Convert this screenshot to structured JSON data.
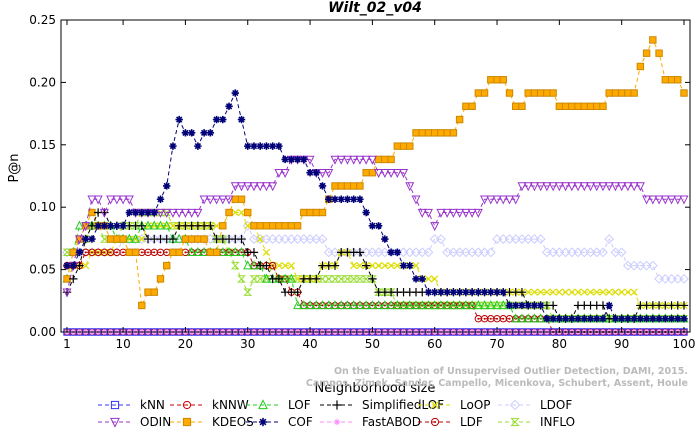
{
  "chart_data": {
    "type": "line",
    "title": "Wilt_02_v04",
    "xlabel": "Neighborhood size",
    "ylabel": "P@n",
    "xlim": [
      0,
      100
    ],
    "ylim": [
      0,
      0.25
    ],
    "xticks": [
      1,
      10,
      20,
      30,
      40,
      50,
      60,
      70,
      80,
      90,
      100
    ],
    "yticks": [
      0.0,
      0.05,
      0.1,
      0.15,
      0.2,
      0.25
    ],
    "grid": false,
    "legend_position": "bottom",
    "watermark": "Campos, Zimek, Sander, Campello, Micenkova, Schubert, Assent, Houle\nOn the Evaluation of Unsupervised Outlier Detection, DAMI, 2015.",
    "series": [
      {
        "name": "kNN",
        "color": "#3333ff",
        "marker": "square",
        "dash": "4,3",
        "keypoints": [
          [
            1,
            0.0
          ],
          [
            100,
            0.0
          ]
        ]
      },
      {
        "name": "kNNW",
        "color": "#cc0000",
        "marker": "circle",
        "dash": "4,3",
        "keypoints": [
          [
            1,
            0.0
          ],
          [
            100,
            0.0
          ]
        ]
      },
      {
        "name": "LOF",
        "color": "#22cc22",
        "marker": "triangle-up",
        "dash": "4,3",
        "keypoints": [
          [
            1,
            0.04
          ],
          [
            3,
            0.085
          ],
          [
            6,
            0.085
          ],
          [
            10,
            0.075
          ],
          [
            16,
            0.085
          ],
          [
            22,
            0.065
          ],
          [
            28,
            0.065
          ],
          [
            31,
            0.05
          ],
          [
            37,
            0.04
          ],
          [
            38,
            0.02
          ],
          [
            70,
            0.02
          ],
          [
            75,
            0.01
          ],
          [
            100,
            0.01
          ]
        ]
      },
      {
        "name": "SimplifiedLOF",
        "color": "#000000",
        "marker": "plus",
        "dash": "4,3",
        "keypoints": [
          [
            1,
            0.03
          ],
          [
            4,
            0.07
          ],
          [
            6,
            0.095
          ],
          [
            10,
            0.085
          ],
          [
            16,
            0.075
          ],
          [
            22,
            0.085
          ],
          [
            26,
            0.075
          ],
          [
            29,
            0.075
          ],
          [
            31,
            0.06
          ],
          [
            35,
            0.04
          ],
          [
            36,
            0.03
          ],
          [
            46,
            0.065
          ],
          [
            48,
            0.065
          ],
          [
            50,
            0.04
          ],
          [
            52,
            0.03
          ],
          [
            74,
            0.03
          ],
          [
            75,
            0.02
          ],
          [
            79,
            0.02
          ],
          [
            80,
            0.01
          ],
          [
            84,
            0.02
          ],
          [
            87,
            0.02
          ],
          [
            88,
            0.01
          ],
          [
            92,
            0.01
          ],
          [
            93,
            0.02
          ],
          [
            100,
            0.02
          ]
        ]
      },
      {
        "name": "LoOP",
        "color": "#dddd00",
        "marker": "x",
        "dash": "4,3",
        "keypoints": [
          [
            1,
            0.045
          ],
          [
            5,
            0.06
          ],
          [
            10,
            0.075
          ],
          [
            18,
            0.085
          ],
          [
            25,
            0.085
          ],
          [
            29,
            0.1
          ],
          [
            33,
            0.06
          ],
          [
            40,
            0.04
          ],
          [
            45,
            0.06
          ],
          [
            50,
            0.055
          ],
          [
            55,
            0.055
          ],
          [
            60,
            0.04
          ],
          [
            62,
            0.03
          ],
          [
            80,
            0.03
          ],
          [
            92,
            0.03
          ],
          [
            93,
            0.02
          ],
          [
            100,
            0.02
          ]
        ]
      },
      {
        "name": "LDOF",
        "color": "#ccccff",
        "marker": "diamond",
        "dash": "4,3",
        "keypoints": [
          [
            1,
            0.06
          ],
          [
            10,
            0.07
          ],
          [
            20,
            0.075
          ],
          [
            30,
            0.08
          ],
          [
            40,
            0.075
          ],
          [
            45,
            0.065
          ],
          [
            55,
            0.065
          ],
          [
            60,
            0.07
          ],
          [
            67,
            0.065
          ],
          [
            72,
            0.075
          ],
          [
            75,
            0.075
          ],
          [
            80,
            0.065
          ],
          [
            85,
            0.06
          ],
          [
            88,
            0.07
          ],
          [
            92,
            0.05
          ],
          [
            100,
            0.045
          ]
        ]
      },
      {
        "name": "ODIN",
        "color": "#9933cc",
        "marker": "triangle-down",
        "dash": "4,3",
        "keypoints": [
          [
            1,
            0.03
          ],
          [
            3,
            0.075
          ],
          [
            5,
            0.105
          ],
          [
            7,
            0.1
          ],
          [
            10,
            0.105
          ],
          [
            14,
            0.095
          ],
          [
            20,
            0.095
          ],
          [
            26,
            0.11
          ],
          [
            30,
            0.115
          ],
          [
            34,
            0.12
          ],
          [
            38,
            0.14
          ],
          [
            42,
            0.13
          ],
          [
            47,
            0.14
          ],
          [
            52,
            0.13
          ],
          [
            56,
            0.12
          ],
          [
            58,
            0.1
          ],
          [
            60,
            0.09
          ],
          [
            64,
            0.095
          ],
          [
            70,
            0.105
          ],
          [
            75,
            0.115
          ],
          [
            80,
            0.12
          ],
          [
            85,
            0.115
          ],
          [
            90,
            0.12
          ],
          [
            94,
            0.11
          ],
          [
            100,
            0.105
          ]
        ]
      },
      {
        "name": "KDEOS",
        "color": "#ffaa00",
        "marker": "square-filled",
        "dash": "4,3",
        "keypoints": [
          [
            1,
            0.045
          ],
          [
            3,
            0.075
          ],
          [
            5,
            0.095
          ],
          [
            8,
            0.075
          ],
          [
            12,
            0.065
          ],
          [
            13,
            0.02
          ],
          [
            15,
            0.035
          ],
          [
            18,
            0.065
          ],
          [
            22,
            0.075
          ],
          [
            25,
            0.065
          ],
          [
            28,
            0.11
          ],
          [
            31,
            0.085
          ],
          [
            35,
            0.085
          ],
          [
            38,
            0.09
          ],
          [
            42,
            0.1
          ],
          [
            44,
            0.12
          ],
          [
            48,
            0.12
          ],
          [
            50,
            0.13
          ],
          [
            52,
            0.14
          ],
          [
            56,
            0.15
          ],
          [
            58,
            0.16
          ],
          [
            63,
            0.16
          ],
          [
            66,
            0.185
          ],
          [
            70,
            0.205
          ],
          [
            73,
            0.185
          ],
          [
            78,
            0.19
          ],
          [
            82,
            0.18
          ],
          [
            87,
            0.185
          ],
          [
            92,
            0.195
          ],
          [
            95,
            0.235
          ],
          [
            97,
            0.205
          ],
          [
            99,
            0.205
          ],
          [
            100,
            0.195
          ]
        ]
      },
      {
        "name": "COF",
        "color": "#000077",
        "marker": "star",
        "dash": "4,3",
        "keypoints": [
          [
            1,
            0.05
          ],
          [
            4,
            0.075
          ],
          [
            8,
            0.085
          ],
          [
            12,
            0.095
          ],
          [
            15,
            0.1
          ],
          [
            17,
            0.12
          ],
          [
            19,
            0.17
          ],
          [
            22,
            0.15
          ],
          [
            25,
            0.165
          ],
          [
            28,
            0.195
          ],
          [
            30,
            0.15
          ],
          [
            33,
            0.15
          ],
          [
            37,
            0.14
          ],
          [
            40,
            0.13
          ],
          [
            43,
            0.11
          ],
          [
            46,
            0.105
          ],
          [
            48,
            0.105
          ],
          [
            50,
            0.09
          ],
          [
            52,
            0.07
          ],
          [
            54,
            0.06
          ],
          [
            56,
            0.055
          ],
          [
            58,
            0.04
          ],
          [
            60,
            0.03
          ],
          [
            70,
            0.03
          ],
          [
            75,
            0.02
          ],
          [
            80,
            0.01
          ],
          [
            86,
            0.01
          ],
          [
            88,
            0.02
          ],
          [
            90,
            0.01
          ],
          [
            100,
            0.01
          ]
        ]
      },
      {
        "name": "FastABOD",
        "color": "#ff88ff",
        "marker": "star-small",
        "dash": "4,3",
        "keypoints": [
          [
            1,
            0.0
          ],
          [
            100,
            0.0
          ]
        ]
      },
      {
        "name": "LDF",
        "color": "#bb0000",
        "marker": "circle-dot",
        "dash": "4,3",
        "keypoints": [
          [
            1,
            0.05
          ],
          [
            5,
            0.065
          ],
          [
            10,
            0.065
          ],
          [
            16,
            0.065
          ],
          [
            20,
            0.065
          ],
          [
            24,
            0.065
          ],
          [
            30,
            0.06
          ],
          [
            35,
            0.045
          ],
          [
            40,
            0.02
          ],
          [
            66,
            0.02
          ],
          [
            68,
            0.01
          ],
          [
            74,
            0.01
          ],
          [
            78,
            0.01
          ],
          [
            80,
            0.0
          ],
          [
            100,
            0.0
          ]
        ]
      },
      {
        "name": "INFLO",
        "color": "#99dd33",
        "marker": "hourglass",
        "dash": "4,3",
        "keypoints": [
          [
            1,
            0.06
          ],
          [
            5,
            0.085
          ],
          [
            8,
            0.075
          ],
          [
            12,
            0.09
          ],
          [
            16,
            0.095
          ],
          [
            20,
            0.085
          ],
          [
            24,
            0.08
          ],
          [
            27,
            0.065
          ],
          [
            30,
            0.035
          ],
          [
            34,
            0.05
          ],
          [
            38,
            0.04
          ],
          [
            42,
            0.04
          ],
          [
            50,
            0.04
          ],
          [
            52,
            0.03
          ],
          [
            56,
            0.02
          ],
          [
            74,
            0.02
          ],
          [
            78,
            0.02
          ],
          [
            80,
            0.01
          ],
          [
            100,
            0.01
          ]
        ]
      }
    ],
    "legend_order": [
      "kNN",
      "kNNW",
      "LOF",
      "SimplifiedLOF",
      "LoOP",
      "LDOF",
      "ODIN",
      "KDEOS",
      "COF",
      "FastABOD",
      "LDF",
      "INFLO"
    ]
  }
}
